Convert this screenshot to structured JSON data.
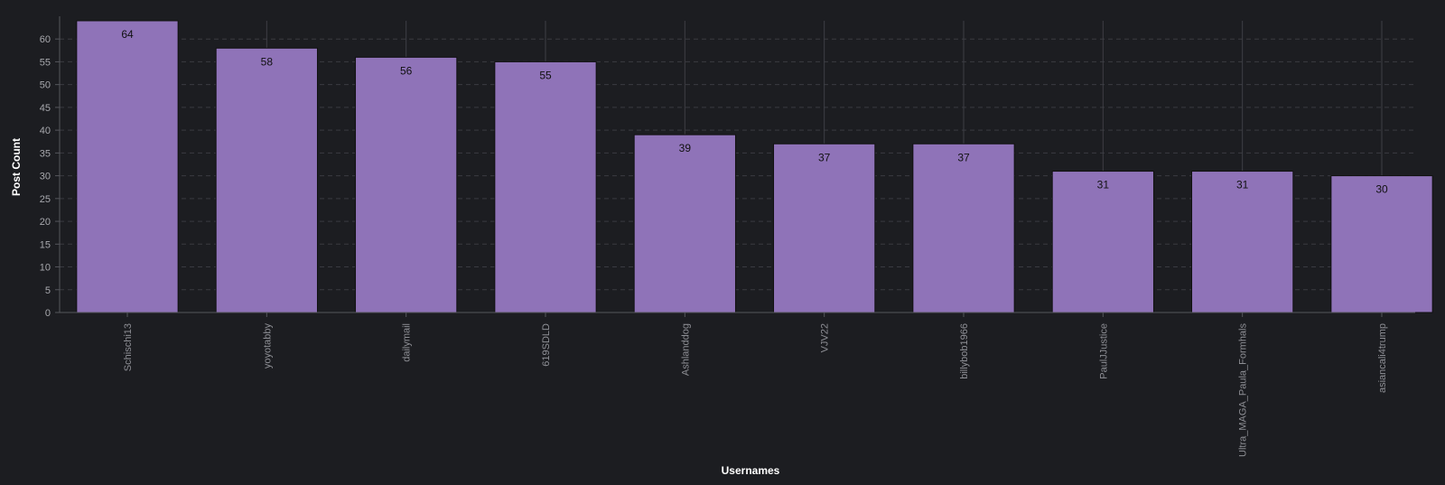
{
  "chart_data": {
    "type": "bar",
    "title": "",
    "xlabel": "Usernames",
    "ylabel": "Post Count",
    "categories": [
      "Schischi13",
      "yoyotabby",
      "dailymail",
      "619SDLD",
      "Ashlanddog",
      "VJV22",
      "billybob1966",
      "PaulJJustice",
      "Ultra_MAGA_Paula_Formhals",
      "asiancali4trump"
    ],
    "values": [
      64,
      58,
      56,
      55,
      39,
      37,
      37,
      31,
      31,
      30
    ],
    "ylim": [
      0,
      64
    ],
    "yticks": [
      0,
      5,
      10,
      15,
      20,
      25,
      30,
      35,
      40,
      45,
      50,
      55,
      60
    ],
    "grid": true,
    "bar_color": "#8f73b8",
    "bar_outline_color": "#111111",
    "background_color": "#1c1d21"
  }
}
